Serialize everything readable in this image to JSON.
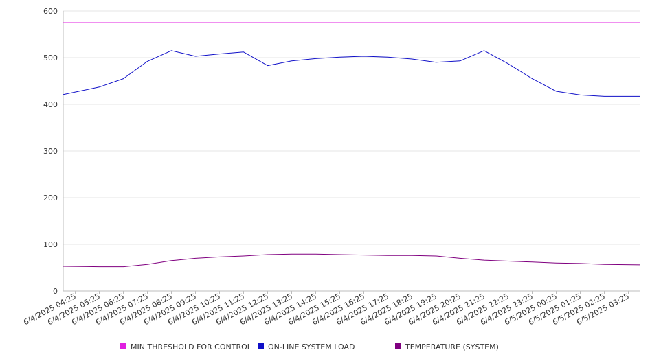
{
  "chart_data": {
    "type": "line",
    "ylim": [
      0,
      600
    ],
    "yticks": [
      0,
      100,
      200,
      300,
      400,
      500,
      600
    ],
    "grid": true,
    "legend_position": "bottom",
    "x_tick_labels": [
      "6/4/2025 04:25",
      "6/4/2025 05:25",
      "6/4/2025 06:25",
      "6/4/2025 07:25",
      "6/4/2025 08:25",
      "6/4/2025 09:25",
      "6/4/2025 10:25",
      "6/4/2025 11:25",
      "6/4/2025 12:25",
      "6/4/2025 13:25",
      "6/4/2025 14:25",
      "6/4/2025 15:25",
      "6/4/2025 16:25",
      "6/4/2025 17:25",
      "6/4/2025 18:25",
      "6/4/2025 19:25",
      "6/4/2025 20:25",
      "6/4/2025 21:25",
      "6/4/2025 22:25",
      "6/4/2025 23:25",
      "6/5/2025 00:25",
      "6/5/2025 01:25",
      "6/5/2025 02:25",
      "6/5/2025 03:25"
    ],
    "series": [
      {
        "name": "MIN THRESHOLD FOR CONTROL",
        "color": "#e020e0",
        "values": [
          575,
          575,
          575,
          575,
          575,
          575,
          575,
          575,
          575,
          575,
          575,
          575,
          575,
          575,
          575,
          575,
          575,
          575,
          575,
          575,
          575,
          575,
          575,
          575
        ]
      },
      {
        "name": "ON-LINE SYSTEM LOAD",
        "color": "#1010c8",
        "values": [
          421,
          437,
          455,
          492,
          515,
          503,
          508,
          512,
          483,
          493,
          498,
          501,
          503,
          501,
          497,
          490,
          493,
          515,
          487,
          455,
          428,
          420,
          417,
          417
        ]
      },
      {
        "name": "TEMPERATURE (SYSTEM)",
        "color": "#800080",
        "values": [
          53,
          52,
          52,
          57,
          65,
          70,
          73,
          75,
          78,
          79,
          79,
          78,
          77,
          76,
          76,
          75,
          70,
          66,
          64,
          62,
          60,
          59,
          57,
          56
        ]
      }
    ]
  }
}
